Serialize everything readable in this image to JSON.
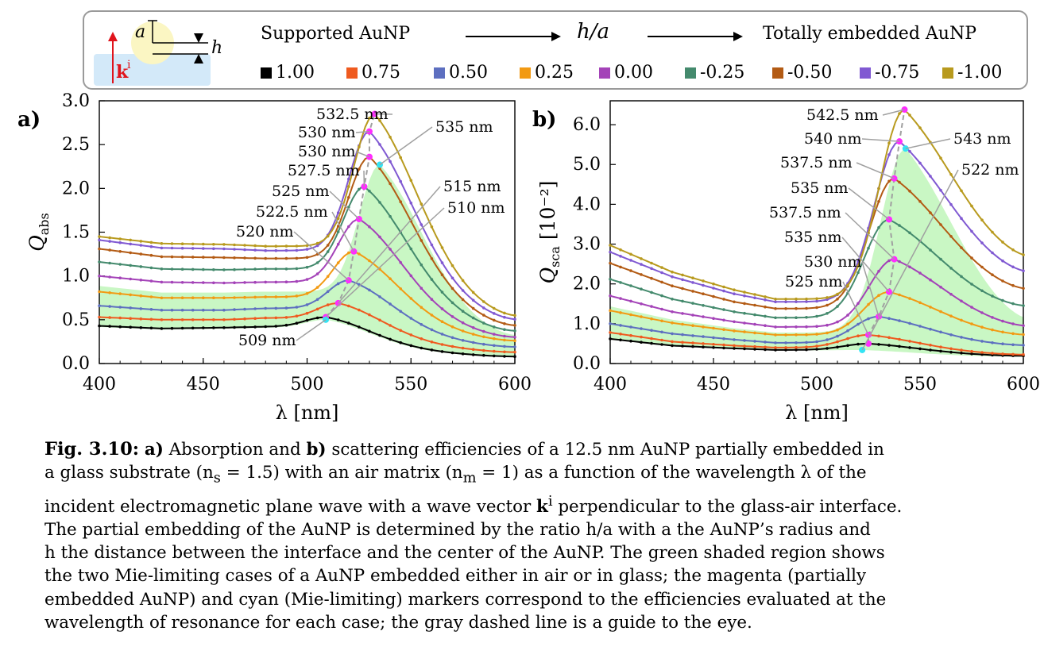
{
  "legend": {
    "left_label": "Supported AuNP",
    "center_label": "h/a",
    "right_label": "Totally embedded AuNP",
    "inset": {
      "radius_label": "a",
      "height_label": "h",
      "k_label": "k",
      "k_sup": "i"
    },
    "items": [
      {
        "label": "1.00",
        "color": "#000000"
      },
      {
        "label": "0.75",
        "color": "#ef5a1f"
      },
      {
        "label": "0.50",
        "color": "#5d6fc0"
      },
      {
        "label": "0.25",
        "color": "#f29a13"
      },
      {
        "label": "0.00",
        "color": "#a443b8"
      },
      {
        "label": "-0.25",
        "color": "#448a6d"
      },
      {
        "label": "-0.50",
        "color": "#b35b14"
      },
      {
        "label": "-0.75",
        "color": "#8059d2"
      },
      {
        "label": "-1.00",
        "color": "#b89a1e"
      }
    ],
    "colors": {
      "mie_fill": "#c9f7c4",
      "magenta_marker": "#ff2dff",
      "cyan_marker": "#33e4f4",
      "guide_line": "#a0a0a0"
    }
  },
  "chart_data": [
    {
      "panel_label": "a)",
      "type": "line",
      "xlabel": "λ [nm]",
      "ylabel_main": "Q",
      "ylabel_sub": "abs",
      "ylabel_extra": "",
      "xlim": [
        400,
        600
      ],
      "ylim": [
        0,
        3.0
      ],
      "xticks": [
        "400",
        "450",
        "500",
        "550",
        "600"
      ],
      "yticks": [
        "0.0",
        "0.5",
        "1.0",
        "1.5",
        "2.0",
        "2.5",
        "3.0"
      ],
      "series": [
        {
          "name": "1.00",
          "peak_x": 509,
          "peak_y": 0.53,
          "base": [
            0.43,
            0.4,
            0.41,
            0.42
          ]
        },
        {
          "name": "0.75",
          "peak_x": 515,
          "peak_y": 0.69,
          "base": [
            0.53,
            0.5,
            0.5,
            0.52
          ]
        },
        {
          "name": "0.50",
          "peak_x": 520,
          "peak_y": 0.95,
          "base": [
            0.66,
            0.61,
            0.61,
            0.63
          ]
        },
        {
          "name": "0.25",
          "peak_x": 522.5,
          "peak_y": 1.28,
          "base": [
            0.82,
            0.75,
            0.75,
            0.76
          ]
        },
        {
          "name": "0.00",
          "peak_x": 525,
          "peak_y": 1.65,
          "base": [
            1.0,
            0.93,
            0.92,
            0.93
          ]
        },
        {
          "name": "-0.25",
          "peak_x": 527.5,
          "peak_y": 2.02,
          "base": [
            1.16,
            1.08,
            1.07,
            1.08
          ]
        },
        {
          "name": "-0.50",
          "peak_x": 530,
          "peak_y": 2.36,
          "base": [
            1.31,
            1.22,
            1.21,
            1.2
          ]
        },
        {
          "name": "-0.75",
          "peak_x": 530,
          "peak_y": 2.65,
          "base": [
            1.41,
            1.32,
            1.31,
            1.29
          ]
        },
        {
          "name": "-1.00",
          "peak_x": 532.5,
          "peak_y": 2.85,
          "base": [
            1.45,
            1.37,
            1.36,
            1.34
          ]
        }
      ],
      "end_values": [
        0.08,
        0.13,
        0.19,
        0.26,
        0.3,
        0.37,
        0.43,
        0.5,
        0.54
      ],
      "mie_band": {
        "lower_peak_x": 509,
        "lower_peak_y": 0.5,
        "upper_peak_x": 535,
        "upper_peak_y": 2.27
      },
      "annotations": [
        "532.5 nm",
        "530 nm",
        "530 nm",
        "527.5 nm",
        "525 nm",
        "522.5 nm",
        "520 nm",
        "535 nm",
        "515 nm",
        "510 nm",
        "509 nm"
      ]
    },
    {
      "panel_label": "b)",
      "type": "line",
      "xlabel": "λ [nm]",
      "ylabel_main": "Q",
      "ylabel_sub": "sca",
      "ylabel_extra": "[10⁻²]",
      "xlim": [
        400,
        600
      ],
      "ylim": [
        0,
        6.6
      ],
      "xticks": [
        "400",
        "450",
        "500",
        "550",
        "600"
      ],
      "yticks": [
        "0.0",
        "1.0",
        "2.0",
        "3.0",
        "4.0",
        "5.0",
        "6.0"
      ],
      "series": [
        {
          "name": "1.00",
          "peak_x": 525,
          "peak_y": 0.5,
          "base": [
            0.62,
            0.45,
            0.38,
            0.34
          ]
        },
        {
          "name": "0.75",
          "peak_x": 525,
          "peak_y": 0.72,
          "base": [
            0.78,
            0.55,
            0.45,
            0.4
          ]
        },
        {
          "name": "0.50",
          "peak_x": 530,
          "peak_y": 1.18,
          "base": [
            1.0,
            0.75,
            0.6,
            0.52
          ]
        },
        {
          "name": "0.25",
          "peak_x": 535,
          "peak_y": 1.8,
          "base": [
            1.33,
            1.02,
            0.82,
            0.72
          ]
        },
        {
          "name": "0.00",
          "peak_x": 537.5,
          "peak_y": 2.62,
          "base": [
            1.7,
            1.3,
            1.05,
            0.92
          ]
        },
        {
          "name": "-0.25",
          "peak_x": 535,
          "peak_y": 3.62,
          "base": [
            2.12,
            1.62,
            1.3,
            1.15
          ]
        },
        {
          "name": "-0.50",
          "peak_x": 537.5,
          "peak_y": 4.65,
          "base": [
            2.52,
            1.95,
            1.55,
            1.38
          ]
        },
        {
          "name": "-0.75",
          "peak_x": 540,
          "peak_y": 5.58,
          "base": [
            2.8,
            2.18,
            1.75,
            1.55
          ]
        },
        {
          "name": "-1.00",
          "peak_x": 542.5,
          "peak_y": 6.38,
          "base": [
            2.97,
            2.3,
            1.85,
            1.62
          ]
        }
      ],
      "end_values": [
        0.19,
        0.22,
        0.45,
        0.7,
        0.9,
        1.4,
        1.8,
        2.2,
        2.55
      ],
      "mie_band": {
        "lower_peak_x": 522,
        "lower_peak_y": 0.34,
        "upper_peak_x": 543,
        "upper_peak_y": 5.4
      },
      "annotations": [
        "542.5 nm",
        "540 nm",
        "537.5 nm",
        "535 nm",
        "537.5 nm",
        "535 nm",
        "530 nm",
        "525 nm",
        "543 nm",
        "522 nm"
      ]
    }
  ],
  "caption": {
    "fig_label": "Fig. 3.10:",
    "lines": [
      [
        "a)",
        " Absorption and ",
        "b)",
        " scattering efficiencies of a 12.5 nm AuNP partially embedded in"
      ],
      [
        "a glass substrate (n",
        "s",
        " = 1.5) with an air matrix (n",
        "m",
        " = 1) as a function of the wavelength λ of the"
      ],
      [
        "incident electromagnetic plane wave with a wave vector ",
        "k",
        "i",
        " perpendicular to the glass-air interface."
      ],
      [
        "The partial embedding of the AuNP is determined by the ratio h/a with a the AuNP’s radius and"
      ],
      [
        "h the distance between the interface and the center of the AuNP. The green shaded region shows"
      ],
      [
        "the two Mie-limiting cases of a AuNP embedded either in air or in glass; the magenta (partially"
      ],
      [
        "embedded AuNP) and cyan (Mie-limiting) markers correspond to the efficiencies evaluated at the"
      ],
      [
        "wavelength of resonance for each case; the gray dashed line is a guide to the eye."
      ]
    ]
  }
}
